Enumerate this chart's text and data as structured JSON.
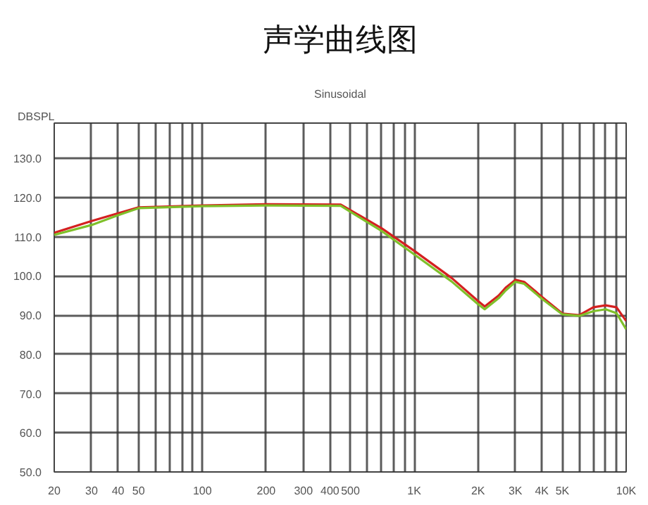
{
  "chart_data": {
    "type": "line",
    "title": "声学曲线图",
    "subtitle": "Sinusoidal",
    "ylabel": "DBSPL",
    "x": [
      20,
      30,
      40,
      50,
      100,
      200,
      450,
      700,
      1000,
      1500,
      2000,
      2150,
      2500,
      2700,
      3000,
      3300,
      4000,
      5000,
      6000,
      7000,
      8000,
      9000,
      10000
    ],
    "series": [
      {
        "color": "#d42020",
        "values": [
          111,
          114,
          116,
          117.5,
          118,
          118.3,
          118.2,
          112.2,
          106.4,
          99.5,
          93.6,
          92.2,
          95,
          97,
          99,
          98.5,
          94.7,
          90.4,
          90,
          92,
          92.5,
          92,
          88.5
        ]
      },
      {
        "color": "#7fc02a",
        "values": [
          110.5,
          113,
          115.5,
          117.3,
          117.8,
          118,
          117.9,
          111.5,
          105.5,
          98.6,
          92.8,
          91.5,
          94.3,
          96.3,
          98.5,
          98,
          94.2,
          90.2,
          89.8,
          91,
          91.5,
          90.5,
          86.4
        ]
      }
    ],
    "log": "x",
    "xlim": [
      20,
      10000
    ],
    "ylim": [
      50,
      139
    ],
    "xticks": [
      20,
      30,
      40,
      50,
      {
        "value": 60,
        "label": null
      },
      {
        "value": 70,
        "label": null
      },
      {
        "value": 80,
        "label": null
      },
      {
        "value": 90,
        "label": null
      },
      100,
      200,
      300,
      400,
      500,
      {
        "value": 600,
        "label": null
      },
      {
        "value": 700,
        "label": null
      },
      {
        "value": 800,
        "label": null
      },
      {
        "value": 900,
        "label": null
      },
      {
        "value": 1000,
        "label": "1K"
      },
      {
        "value": 2000,
        "label": "2K"
      },
      {
        "value": 3000,
        "label": "3K"
      },
      {
        "value": 4000,
        "label": "4K"
      },
      {
        "value": 5000,
        "label": "5K"
      },
      {
        "value": 6000,
        "label": null
      },
      {
        "value": 7000,
        "label": null
      },
      {
        "value": 8000,
        "label": null
      },
      {
        "value": 9000,
        "label": null
      },
      {
        "value": 10000,
        "label": "10K"
      }
    ],
    "yticks": [
      {
        "value": 50,
        "label": "50.0"
      },
      {
        "value": 60,
        "label": "60.0"
      },
      {
        "value": 70,
        "label": "70.0"
      },
      {
        "value": 80,
        "label": "80.0"
      },
      {
        "value": 90,
        "label": "90.0"
      },
      {
        "value": 100,
        "label": "100.0"
      },
      {
        "value": 110,
        "label": "110.0"
      },
      {
        "value": 120,
        "label": "120.0"
      },
      {
        "value": 130,
        "label": "130.0"
      }
    ],
    "grid": true,
    "marker": "none",
    "line_style": "solid"
  }
}
